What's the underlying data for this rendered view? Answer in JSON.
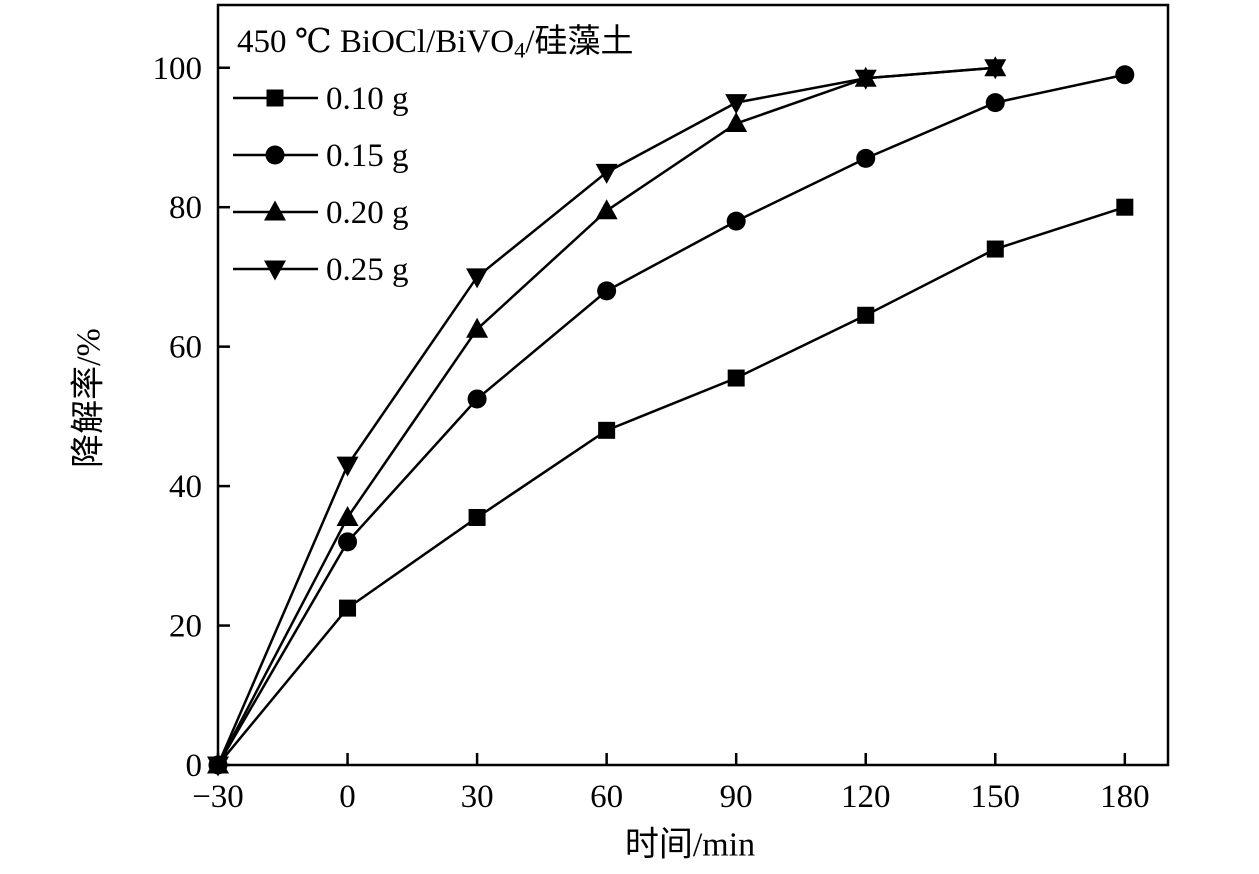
{
  "chart_data": {
    "type": "line",
    "title": "450 ℃ BiOCl/BiVO4/硅藻土",
    "title_parts": {
      "pre": "450 ℃ BiOCl/BiVO",
      "sub": "4",
      "post": "/硅藻土"
    },
    "xlabel": "时间/min",
    "ylabel": "降解率/%",
    "x": [
      -30,
      0,
      30,
      60,
      90,
      120,
      150,
      180
    ],
    "x_tick_labels": [
      "−30",
      "0",
      "30",
      "60",
      "90",
      "120",
      "150",
      "180"
    ],
    "y_ticks": [
      0,
      20,
      40,
      60,
      80,
      100
    ],
    "xlim": [
      -30,
      190
    ],
    "ylim": [
      0,
      109
    ],
    "grid": false,
    "legend_position": "top-left-inside",
    "series": [
      {
        "name": "0.10 g",
        "marker": "square",
        "values": [
          0,
          22.5,
          35.5,
          48,
          55.5,
          64.5,
          74,
          80
        ]
      },
      {
        "name": "0.15 g",
        "marker": "circle",
        "values": [
          0,
          32,
          52.5,
          68,
          78,
          87,
          95,
          99
        ]
      },
      {
        "name": "0.20 g",
        "marker": "triangle-up",
        "values": [
          0,
          35.5,
          62.5,
          79.5,
          92,
          98.5,
          100,
          null
        ]
      },
      {
        "name": "0.25 g",
        "marker": "triangle-down",
        "values": [
          0,
          43,
          70,
          85,
          95,
          98.5,
          100,
          null
        ]
      }
    ],
    "colors": {
      "line": "#000000",
      "background": "#ffffff"
    }
  }
}
